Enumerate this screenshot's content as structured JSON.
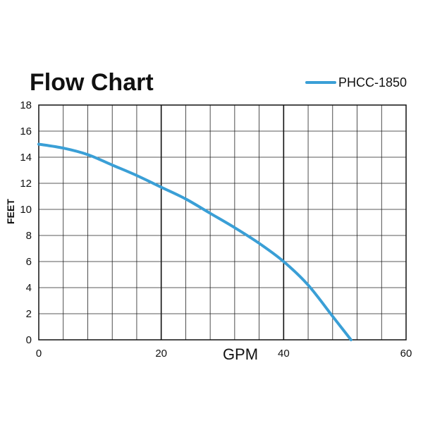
{
  "colors": {
    "series": "#3a9fd6",
    "grid_minor": "#222222",
    "grid_major": "#111111",
    "text": "#111111"
  },
  "chart_data": {
    "type": "line",
    "title": "Flow Chart",
    "xlabel": "GPM",
    "ylabel": "FEET",
    "xlim": [
      0,
      60
    ],
    "ylim": [
      0,
      18
    ],
    "xticks": [
      "0",
      "20",
      "40",
      "60"
    ],
    "yticks": [
      "0",
      "2",
      "4",
      "6",
      "8",
      "10",
      "12",
      "14",
      "16",
      "18"
    ],
    "x_grid_step": 4,
    "y_grid_step": 2,
    "x_major_step": 20,
    "grid": true,
    "legend_position": "top-right",
    "series": [
      {
        "name": "PHCC-1850",
        "x": [
          0,
          4,
          8,
          12,
          16,
          20,
          24,
          28,
          32,
          36,
          40,
          44,
          48,
          50,
          51
        ],
        "y": [
          15.0,
          14.7,
          14.2,
          13.4,
          12.6,
          11.7,
          10.8,
          9.7,
          8.6,
          7.4,
          6.0,
          4.2,
          1.8,
          0.6,
          0
        ]
      }
    ]
  }
}
